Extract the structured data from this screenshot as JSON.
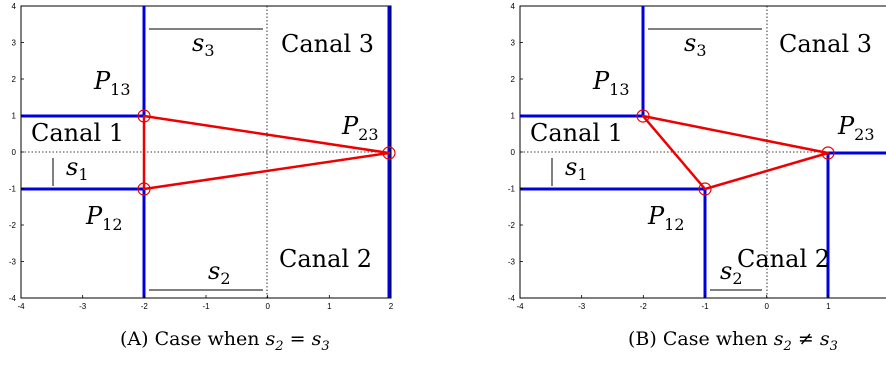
{
  "panels": [
    {
      "id": "a",
      "canal_labels": [
        "Canal 1",
        "Canal 2",
        "Canal 3"
      ],
      "point_labels": [
        "P13",
        "P12",
        "P23"
      ],
      "segment_labels": [
        "s1",
        "s2",
        "s3"
      ],
      "x_ticks": [
        "-4",
        "-3",
        "-2",
        "-1",
        "0",
        "1",
        "2"
      ],
      "y_ticks": [
        "4",
        "3",
        "2",
        "1",
        "0",
        "-1",
        "-2",
        "-3",
        "-4"
      ],
      "points": [
        [
          -2,
          1
        ],
        [
          -2,
          -1
        ],
        [
          2,
          0
        ]
      ],
      "caption": {
        "tag": "(A)",
        "text": "Case when",
        "lhs": "s2",
        "op": "=",
        "rhs": "s3"
      }
    },
    {
      "id": "b",
      "canal_labels": [
        "Canal 1",
        "Canal 2",
        "Canal 3"
      ],
      "point_labels": [
        "P13",
        "P12",
        "P23"
      ],
      "segment_labels": [
        "s1",
        "s2",
        "s3"
      ],
      "x_ticks": [
        "-4",
        "-3",
        "-2",
        "-1",
        "0",
        "1"
      ],
      "y_ticks": [
        "4",
        "3",
        "2",
        "1",
        "0",
        "-1",
        "-2",
        "-3",
        "-4"
      ],
      "points": [
        [
          -2,
          1
        ],
        [
          -1,
          -1
        ],
        [
          1,
          0
        ]
      ],
      "caption": {
        "tag": "(B)",
        "text": "Case when",
        "lhs": "s2",
        "op": "≠",
        "rhs": "s3"
      }
    }
  ],
  "colors": {
    "canal": "#0000dd",
    "triangle": "#ee0000",
    "axis": "#000000"
  }
}
